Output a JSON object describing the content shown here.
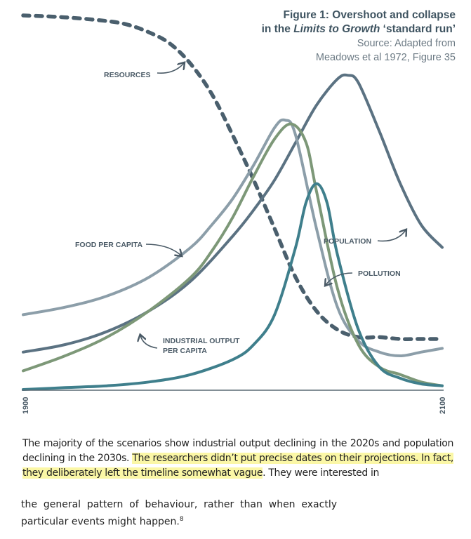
{
  "figure": {
    "title_line1": "Figure 1: Overshoot and collapse",
    "title_line2_pre": "in the ",
    "title_line2_italic": "Limits to Growth",
    "title_line2_post": " ‘standard run’",
    "source_line1": "Source: Adapted from",
    "source_line2": "Meadows  et al 1972, Figure 35"
  },
  "chart_data": {
    "type": "line",
    "x_tick_labels": [
      "1900",
      "2100"
    ],
    "xlim": [
      1900,
      2100
    ],
    "ylim": [
      0,
      1
    ],
    "y_axis": "unlabeled (relative level)",
    "grid": false,
    "legend": "inline labels with arrows",
    "series": [
      {
        "name": "RESOURCES",
        "style": "dashed",
        "color": "#4a5f6d",
        "x": [
          1900,
          1920,
          1940,
          1950,
          1960,
          1970,
          1980,
          1990,
          2000,
          2010,
          2020,
          2030,
          2040,
          2050,
          2060,
          2070,
          2080,
          2090,
          2100
        ],
        "y": [
          1.0,
          0.995,
          0.985,
          0.975,
          0.955,
          0.925,
          0.87,
          0.79,
          0.68,
          0.56,
          0.43,
          0.3,
          0.21,
          0.16,
          0.14,
          0.14,
          0.135,
          0.135,
          0.135
        ]
      },
      {
        "name": "POPULATION",
        "style": "solid",
        "color": "#5b7282",
        "x": [
          1900,
          1920,
          1940,
          1960,
          1980,
          2000,
          2010,
          2020,
          2030,
          2040,
          2050,
          2055,
          2060,
          2070,
          2080,
          2090,
          2100
        ],
        "y": [
          0.1,
          0.12,
          0.155,
          0.21,
          0.29,
          0.41,
          0.48,
          0.56,
          0.66,
          0.76,
          0.83,
          0.84,
          0.82,
          0.69,
          0.55,
          0.44,
          0.38
        ]
      },
      {
        "name": "FOOD PER CAPITA",
        "style": "solid",
        "color": "#8c9ea9",
        "x": [
          1900,
          1920,
          1940,
          1960,
          1980,
          1990,
          2000,
          2010,
          2020,
          2025,
          2030,
          2040,
          2050,
          2060,
          2070,
          2080,
          2090,
          2100
        ],
        "y": [
          0.2,
          0.22,
          0.25,
          0.3,
          0.38,
          0.44,
          0.51,
          0.6,
          0.7,
          0.72,
          0.68,
          0.43,
          0.22,
          0.13,
          0.1,
          0.09,
          0.1,
          0.11
        ]
      },
      {
        "name": "INDUSTRIAL OUTPUT PER CAPITA",
        "style": "solid",
        "color": "#7d9878",
        "x": [
          1900,
          1920,
          1940,
          1960,
          1980,
          1990,
          2000,
          2010,
          2020,
          2028,
          2035,
          2040,
          2050,
          2060,
          2070,
          2080,
          2090,
          2100
        ],
        "y": [
          0.05,
          0.09,
          0.14,
          0.21,
          0.3,
          0.37,
          0.46,
          0.57,
          0.67,
          0.71,
          0.66,
          0.53,
          0.27,
          0.12,
          0.06,
          0.04,
          0.02,
          0.01
        ]
      },
      {
        "name": "POLLUTION",
        "style": "solid",
        "color": "#3f7f8c",
        "x": [
          1900,
          1920,
          1940,
          1960,
          1980,
          2000,
          2010,
          2020,
          2030,
          2035,
          2040,
          2045,
          2050,
          2060,
          2070,
          2080,
          2090,
          2100
        ],
        "y": [
          0.0,
          0.005,
          0.01,
          0.02,
          0.04,
          0.08,
          0.12,
          0.2,
          0.38,
          0.5,
          0.55,
          0.5,
          0.36,
          0.16,
          0.06,
          0.03,
          0.015,
          0.01
        ]
      }
    ]
  },
  "text": {
    "p1_a": "The majority of the scenarios show industrial output declining in the 2020s and population declining in the 2030s. ",
    "p1_highlight": "The researchers didn’t put precise dates on their projections. In fact, they deliberately left the timeline somewhat vague",
    "p1_b": ". They were interested in",
    "p2": "the general pattern of behaviour, rather than when exactly particular events might happen.",
    "p2_footnote": "8"
  },
  "colors": {
    "label": "#4a5a66",
    "caption_title": "#3f5461",
    "caption_source": "#6c7a84",
    "highlight": "#fbf7a6"
  }
}
